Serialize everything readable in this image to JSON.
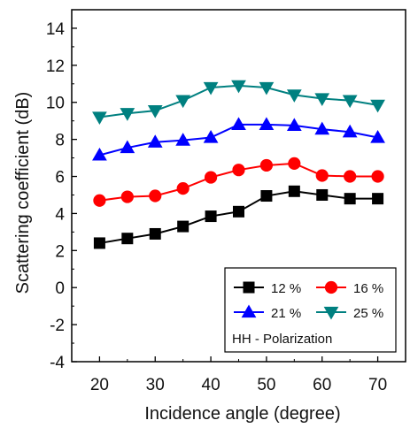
{
  "chart_data": {
    "type": "line",
    "title": "",
    "xlabel": "Incidence angle (degree)",
    "ylabel": "Scattering coefficient (dB)",
    "xlim": [
      15,
      75
    ],
    "ylim": [
      -4,
      15
    ],
    "xticks": [
      20,
      30,
      40,
      50,
      60,
      70
    ],
    "yticks": [
      -4,
      -2,
      0,
      2,
      4,
      6,
      8,
      10,
      12,
      14
    ],
    "x": [
      20,
      25,
      30,
      35,
      40,
      45,
      50,
      55,
      60,
      65,
      70
    ],
    "grid": false,
    "legend_position": "bottom-right",
    "legend_note": "HH - Polarization",
    "series": [
      {
        "name": "12 %",
        "color": "#000000",
        "marker": "square",
        "values": [
          2.4,
          2.65,
          2.9,
          3.3,
          3.85,
          4.1,
          4.95,
          5.2,
          5.0,
          4.8,
          4.8
        ]
      },
      {
        "name": "16 %",
        "color": "#ff0000",
        "marker": "circle",
        "values": [
          4.7,
          4.9,
          4.95,
          5.35,
          5.95,
          6.35,
          6.6,
          6.7,
          6.05,
          6.0,
          6.0
        ]
      },
      {
        "name": "21 %",
        "color": "#0000ff",
        "marker": "triangle-up",
        "values": [
          7.15,
          7.55,
          7.85,
          7.95,
          8.1,
          8.8,
          8.8,
          8.75,
          8.55,
          8.4,
          8.1
        ]
      },
      {
        "name": "25 %",
        "color": "#008080",
        "marker": "triangle-down",
        "values": [
          9.2,
          9.4,
          9.55,
          10.1,
          10.8,
          10.9,
          10.8,
          10.4,
          10.2,
          10.1,
          9.85
        ]
      }
    ]
  }
}
